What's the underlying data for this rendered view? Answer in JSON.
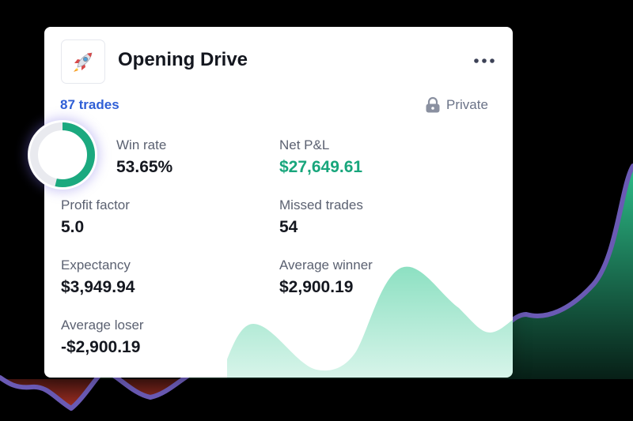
{
  "card": {
    "emoji": "🚀",
    "title": "Opening Drive",
    "trades_label": "87 trades",
    "privacy_label": "Private"
  },
  "win_rate": 0.5365,
  "stats": {
    "win_rate": {
      "label": "Win rate",
      "value": "53.65%"
    },
    "net_pnl": {
      "label": "Net P&L",
      "value": "$27,649.61"
    },
    "profit_factor": {
      "label": "Profit factor",
      "value": "5.0"
    },
    "missed_trades": {
      "label": "Missed trades",
      "value": "54"
    },
    "expectancy": {
      "label": "Expectancy",
      "value": "$3,949.94"
    },
    "average_winner": {
      "label": "Average winner",
      "value": "$2,900.19"
    },
    "average_loser": {
      "label": "Average loser",
      "value": "-$2,900.19"
    }
  },
  "colors": {
    "line": "#6a5ab4",
    "positive_fill": "#2fc790",
    "negative_fill": "#c0392b",
    "ring_fill": "#1ba97f",
    "ring_track": "#e9eaef",
    "positive_text": "#18a67c",
    "link": "#2f5fd6"
  },
  "icons": {
    "menu": "ellipsis-icon",
    "privacy": "lock-icon",
    "strategy": "rocket-emoji"
  }
}
